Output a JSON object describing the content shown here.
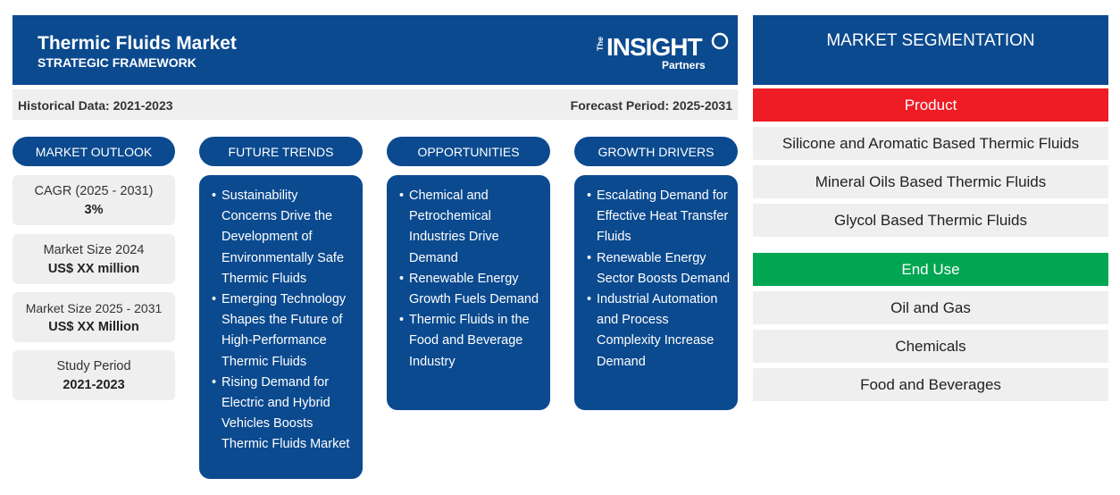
{
  "header": {
    "title": "Thermic Fluids Market",
    "subtitle": "STRATEGIC FRAMEWORK",
    "logo": {
      "the": "The",
      "main": "INSIGHT",
      "sub": "Partners"
    }
  },
  "subbar": {
    "historical": "Historical Data: 2021-2023",
    "forecast": "Forecast Period: 2025-2031"
  },
  "columns": {
    "outlook": "MARKET OUTLOOK",
    "trends": "FUTURE TRENDS",
    "opportunities": "OPPORTUNITIES",
    "drivers": "GROWTH DRIVERS"
  },
  "stats": [
    {
      "label": "CAGR (2025 - 2031)",
      "value": "3%"
    },
    {
      "label": "Market Size 2024",
      "value": "US$ XX million"
    },
    {
      "label": "Market Size 2025 - 2031",
      "value": "US$ XX Million"
    },
    {
      "label": "Study Period",
      "value": "2021-2023"
    }
  ],
  "trends": [
    "Sustainability Concerns Drive the Development of Environmentally Safe Thermic Fluids",
    "Emerging Technology Shapes the Future of High-Performance Thermic Fluids",
    "Rising Demand for Electric and Hybrid Vehicles Boosts Thermic Fluids Market"
  ],
  "opportunities": [
    "Chemical and Petrochemical Industries Drive Demand",
    "Renewable Energy Growth Fuels Demand",
    "Thermic Fluids in the Food and Beverage Industry"
  ],
  "drivers": [
    "Escalating Demand for Effective Heat Transfer Fluids",
    "Renewable Energy Sector Boosts Demand",
    "Industrial Automation and Process Complexity Increase Demand"
  ],
  "segmentation": {
    "title": "MARKET SEGMENTATION",
    "product": {
      "label": "Product",
      "color": "#ee1c25",
      "items": [
        "Silicone and Aromatic Based Thermic Fluids",
        "Mineral Oils Based Thermic Fluids",
        "Glycol Based Thermic Fluids"
      ]
    },
    "end_use": {
      "label": "End Use",
      "color": "#00a651",
      "items": [
        "Oil and Gas",
        "Chemicals",
        "Food and Beverages"
      ]
    }
  },
  "colors": {
    "primary": "#0b4a8f",
    "panel": "#efefef"
  }
}
